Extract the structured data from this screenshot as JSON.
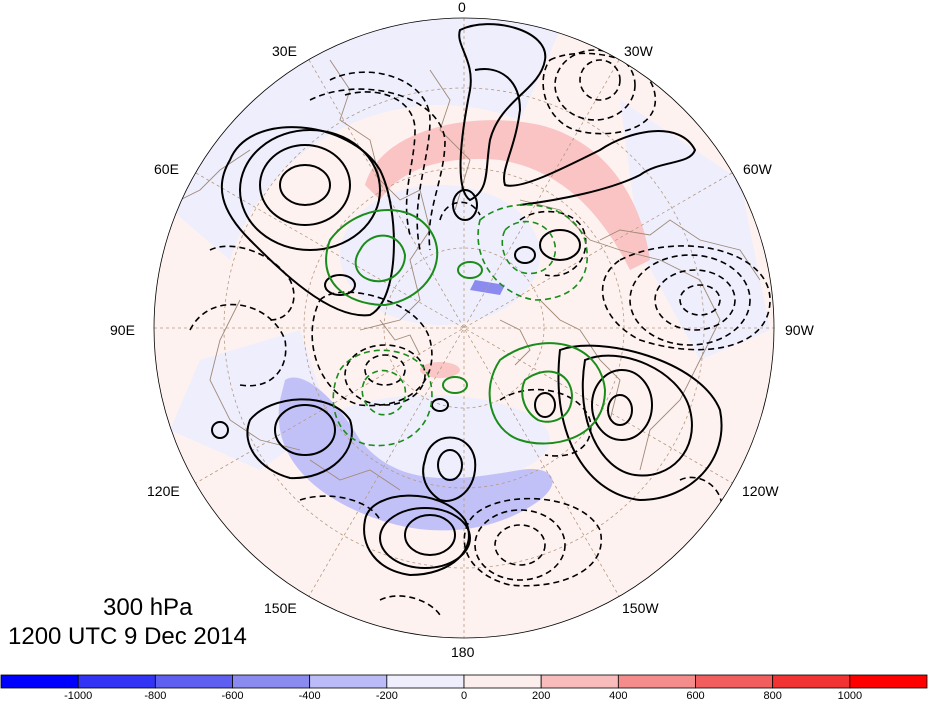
{
  "plot": {
    "projection": "north-polar-stereographic",
    "level": "300 hPa",
    "valid_time": "1200 UTC 9 Dec 2014",
    "longitude_labels": [
      {
        "id": "0",
        "text": "0"
      },
      {
        "id": "30W",
        "text": "30W"
      },
      {
        "id": "60W",
        "text": "60W"
      },
      {
        "id": "90W",
        "text": "90W"
      },
      {
        "id": "120W",
        "text": "120W"
      },
      {
        "id": "150W",
        "text": "150W"
      },
      {
        "id": "180",
        "text": "180"
      },
      {
        "id": "150E",
        "text": "150E"
      },
      {
        "id": "120E",
        "text": "120E"
      },
      {
        "id": "90E",
        "text": "90E"
      },
      {
        "id": "60E",
        "text": "60E"
      },
      {
        "id": "30E",
        "text": "30E"
      }
    ],
    "layers": {
      "shading": "filled anomaly field, blue negative, red positive",
      "black_contours": "solid positive, dashed negative",
      "green_contours": "solid positive, dashed negative",
      "coastlines_color": "#a08a78",
      "gridline_color": "#b59a82"
    }
  },
  "colorbar": {
    "boundaries": [
      "-1000",
      "-800",
      "-600",
      "-400",
      "-200",
      "0",
      "200",
      "400",
      "600",
      "800",
      "1000"
    ],
    "colors": [
      "#0000ff",
      "#3333f5",
      "#5e5ef0",
      "#8a8aef",
      "#bbbbf7",
      "#eeeefd",
      "#fdeeee",
      "#f9bcbc",
      "#f58c8c",
      "#f25e5e",
      "#f23333",
      "#ff0000"
    ]
  }
}
